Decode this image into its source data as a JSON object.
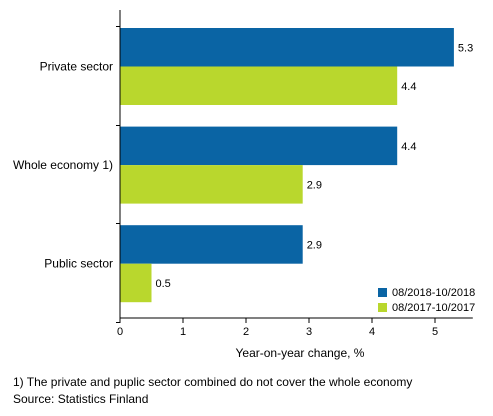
{
  "chart_data": {
    "type": "bar",
    "orientation": "horizontal",
    "categories": [
      "Private sector",
      "Whole economy 1)",
      "Public sector"
    ],
    "series": [
      {
        "name": "08/2018-10/2018",
        "values": [
          5.3,
          4.4,
          2.9
        ],
        "color": "#0a64a4"
      },
      {
        "name": "08/2017-10/2017",
        "values": [
          4.4,
          2.9,
          0.5
        ],
        "color": "#b9d72d"
      }
    ],
    "xlabel": "Year-on-year change, %",
    "xlim": [
      0,
      5.6
    ],
    "xticks": [
      "0",
      "1",
      "2",
      "3",
      "4",
      "5"
    ],
    "grid": false,
    "legend_position": "bottom-right"
  },
  "footnote": "1) The private and puplic sector combined do not cover the whole economy",
  "source": "Source: Statistics Finland"
}
